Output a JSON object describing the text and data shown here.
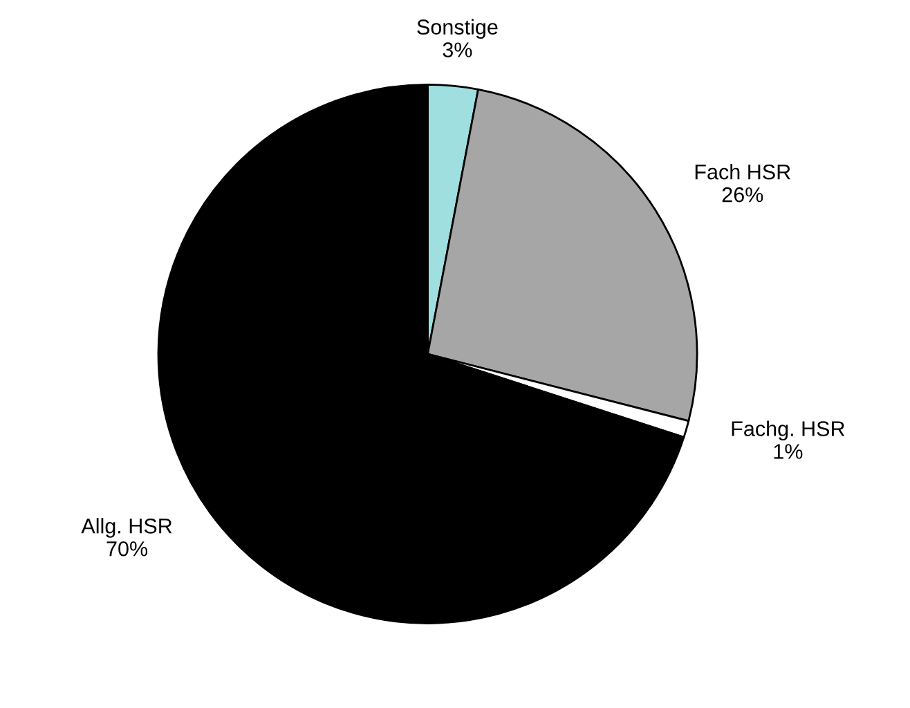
{
  "chart_data": {
    "type": "pie",
    "categories": [
      "Sonstige",
      "Fach HSR",
      "Fachg. HSR",
      "Allg. HSR"
    ],
    "values": [
      3,
      26,
      1,
      70
    ],
    "value_labels": [
      "3%",
      "26%",
      "1%",
      "70%"
    ],
    "colors": [
      "#a0dfe0",
      "#a6a6a6",
      "#ffffff",
      "#000000"
    ]
  }
}
